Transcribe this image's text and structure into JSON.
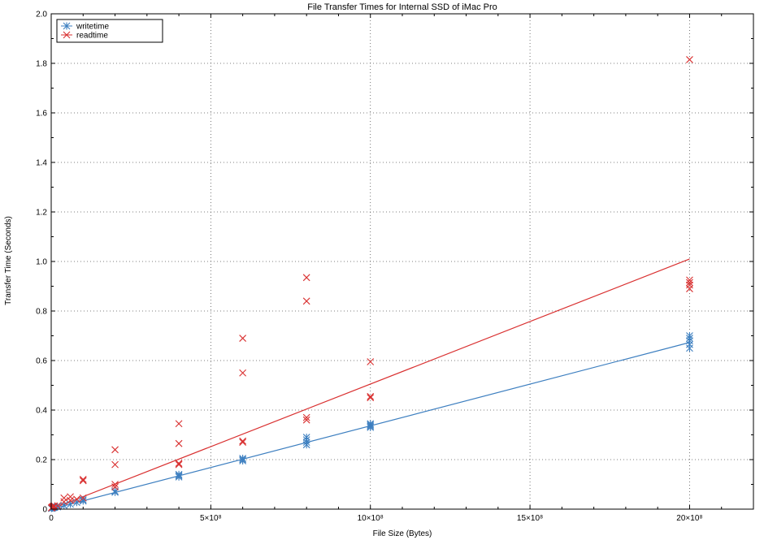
{
  "chart_data": {
    "type": "scatter",
    "title": "File Transfer Times for Internal SSD of iMac Pro",
    "xlabel": "File Size (Bytes)",
    "ylabel": "Transfer Time (Seconds)",
    "xlim": [
      0,
      2200000000
    ],
    "ylim": [
      0,
      2.0
    ],
    "x_ticks": [
      0,
      500000000,
      1000000000,
      1500000000,
      2000000000
    ],
    "x_tick_labels": [
      "0",
      "5×10⁸",
      "10×10⁸",
      "15×10⁸",
      "20×10⁸"
    ],
    "y_ticks": [
      0,
      0.2,
      0.4,
      0.6,
      0.8,
      1.0,
      1.2,
      1.4,
      1.6,
      1.8,
      2.0
    ],
    "y_tick_labels": [
      "0",
      "0.2",
      "0.4",
      "0.6",
      "0.8",
      "1.0",
      "1.2",
      "1.4",
      "1.6",
      "1.8",
      "2.0"
    ],
    "grid": true,
    "legend_position": "top-left",
    "series": [
      {
        "name": "writetime",
        "color": "#3d7fc0",
        "marker": "asterisk",
        "points": [
          [
            1000000,
            0.003
          ],
          [
            2000000,
            0.004
          ],
          [
            4000000,
            0.005
          ],
          [
            6000000,
            0.006
          ],
          [
            8000000,
            0.007
          ],
          [
            10000000,
            0.008
          ],
          [
            20000000,
            0.009
          ],
          [
            40000000,
            0.015
          ],
          [
            60000000,
            0.02
          ],
          [
            80000000,
            0.027
          ],
          [
            100000000,
            0.033
          ],
          [
            100000000,
            0.038
          ],
          [
            200000000,
            0.068
          ],
          [
            200000000,
            0.072
          ],
          [
            400000000,
            0.13
          ],
          [
            400000000,
            0.135
          ],
          [
            400000000,
            0.14
          ],
          [
            600000000,
            0.195
          ],
          [
            600000000,
            0.2
          ],
          [
            600000000,
            0.205
          ],
          [
            800000000,
            0.26
          ],
          [
            800000000,
            0.27
          ],
          [
            800000000,
            0.28
          ],
          [
            800000000,
            0.29
          ],
          [
            1000000000,
            0.33
          ],
          [
            1000000000,
            0.335
          ],
          [
            1000000000,
            0.34
          ],
          [
            1000000000,
            0.345
          ],
          [
            2000000000,
            0.65
          ],
          [
            2000000000,
            0.665
          ],
          [
            2000000000,
            0.68
          ],
          [
            2000000000,
            0.69
          ],
          [
            2000000000,
            0.7
          ]
        ],
        "fit": [
          [
            0,
            0.0
          ],
          [
            2000000000,
            0.673
          ]
        ]
      },
      {
        "name": "readtime",
        "color": "#d93030",
        "marker": "x",
        "points": [
          [
            1000000,
            0.005
          ],
          [
            2000000,
            0.007
          ],
          [
            4000000,
            0.009
          ],
          [
            6000000,
            0.011
          ],
          [
            8000000,
            0.012
          ],
          [
            10000000,
            0.013
          ],
          [
            20000000,
            0.014
          ],
          [
            40000000,
            0.03
          ],
          [
            40000000,
            0.045
          ],
          [
            60000000,
            0.035
          ],
          [
            60000000,
            0.05
          ],
          [
            80000000,
            0.04
          ],
          [
            100000000,
            0.045
          ],
          [
            100000000,
            0.115
          ],
          [
            100000000,
            0.12
          ],
          [
            200000000,
            0.09
          ],
          [
            200000000,
            0.1
          ],
          [
            200000000,
            0.18
          ],
          [
            200000000,
            0.24
          ],
          [
            400000000,
            0.18
          ],
          [
            400000000,
            0.185
          ],
          [
            400000000,
            0.265
          ],
          [
            400000000,
            0.345
          ],
          [
            600000000,
            0.27
          ],
          [
            600000000,
            0.275
          ],
          [
            600000000,
            0.55
          ],
          [
            600000000,
            0.69
          ],
          [
            800000000,
            0.36
          ],
          [
            800000000,
            0.37
          ],
          [
            800000000,
            0.84
          ],
          [
            800000000,
            0.935
          ],
          [
            1000000000,
            0.45
          ],
          [
            1000000000,
            0.455
          ],
          [
            1000000000,
            0.595
          ],
          [
            2000000000,
            0.89
          ],
          [
            2000000000,
            0.905
          ],
          [
            2000000000,
            0.915
          ],
          [
            2000000000,
            0.925
          ],
          [
            2000000000,
            1.815
          ]
        ],
        "fit": [
          [
            0,
            0.0
          ],
          [
            2000000000,
            1.01
          ]
        ]
      }
    ]
  }
}
